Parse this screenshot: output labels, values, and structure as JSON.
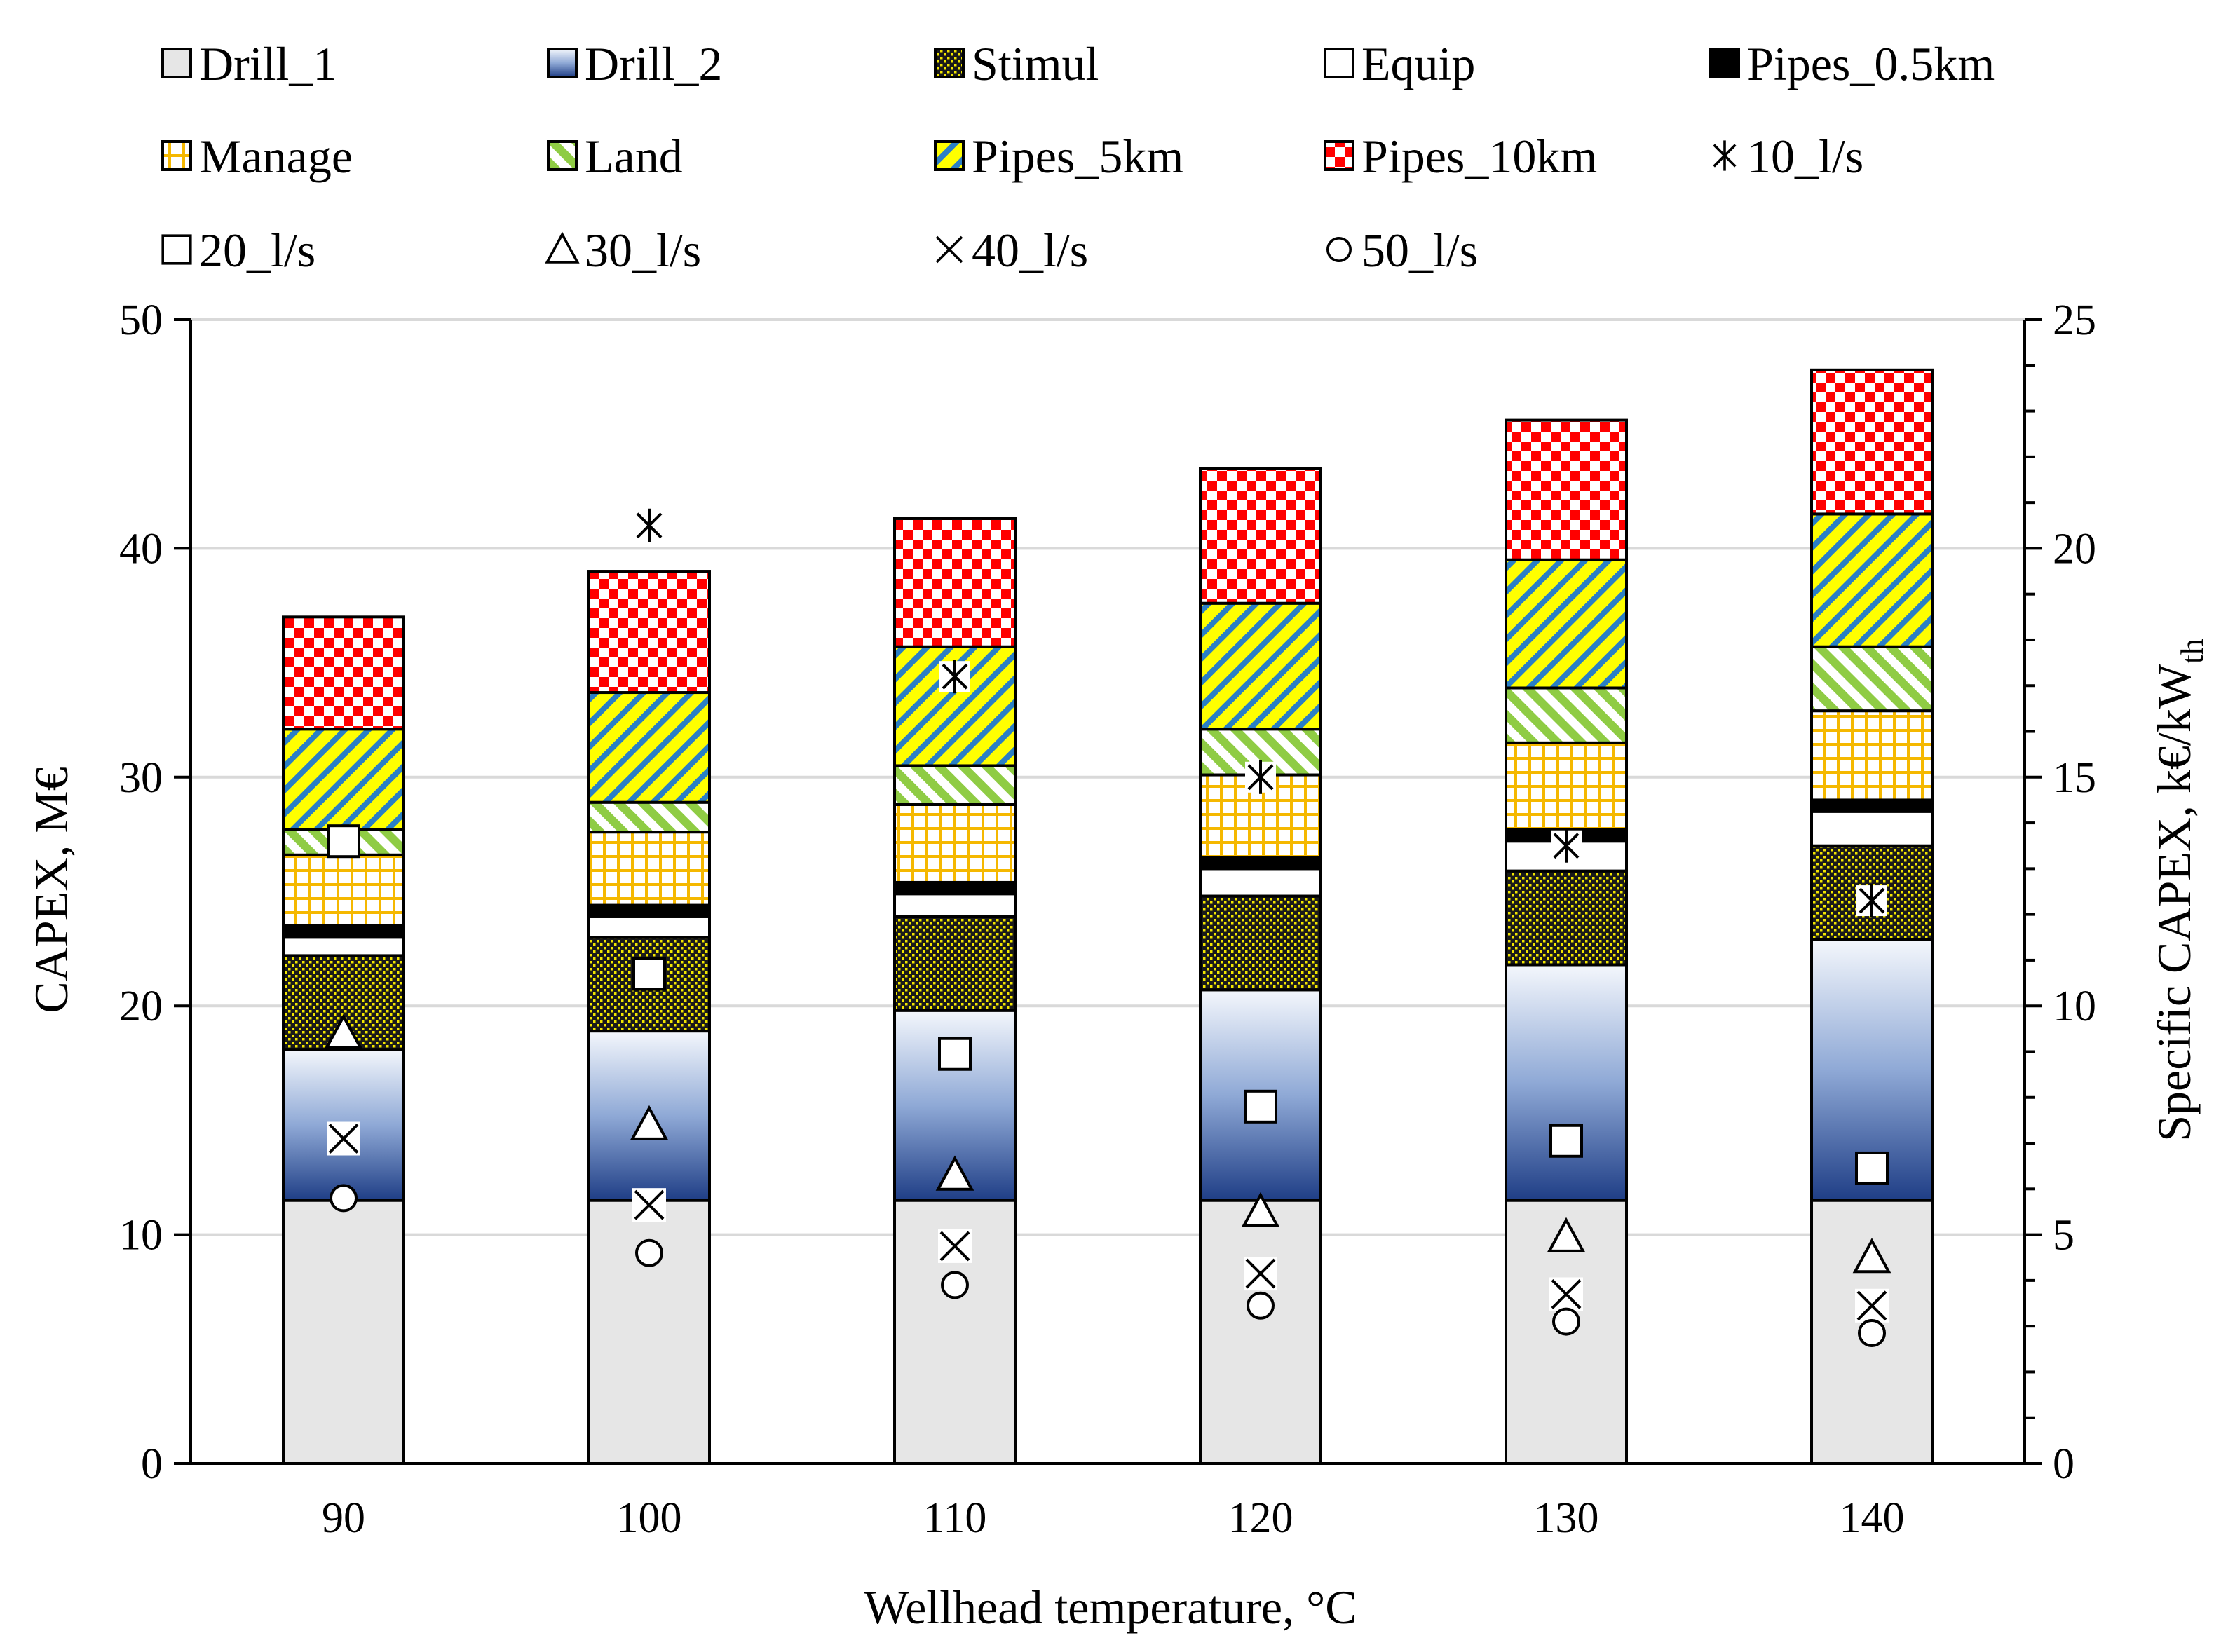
{
  "chart_data": {
    "type": "bar",
    "stacked": true,
    "x_title": "Wellhead temperature, °C",
    "y_left_title": "CAPEX, M€",
    "y_right_title_main": "Specific CAPEX, k€/kW",
    "y_right_title_sub": "th",
    "categories": [
      "90",
      "100",
      "110",
      "120",
      "130",
      "140"
    ],
    "y_left": {
      "min": 0,
      "max": 50,
      "ticks": [
        "0",
        "10",
        "20",
        "30",
        "40",
        "50"
      ]
    },
    "y_right": {
      "min": 0,
      "max": 25,
      "ticks": [
        "0",
        "5",
        "10",
        "15",
        "20",
        "25"
      ]
    },
    "grid": true,
    "legend_position": "top",
    "series": [
      {
        "name": "Drill_1",
        "fill": "drill1",
        "values": [
          11.5,
          11.5,
          11.5,
          11.5,
          11.5,
          11.5
        ]
      },
      {
        "name": "Drill_2",
        "fill": "drill2",
        "values": [
          6.6,
          7.4,
          8.3,
          9.2,
          10.3,
          11.4
        ]
      },
      {
        "name": "Stimul",
        "fill": "stimul",
        "values": [
          4.1,
          4.1,
          4.1,
          4.1,
          4.1,
          4.1
        ]
      },
      {
        "name": "Equip",
        "fill": "equip",
        "values": [
          0.8,
          0.9,
          1.0,
          1.2,
          1.3,
          1.5
        ]
      },
      {
        "name": "Pipes_0.5km",
        "fill": "pipes05",
        "values": [
          0.5,
          0.5,
          0.5,
          0.5,
          0.5,
          0.5
        ]
      },
      {
        "name": "Manage",
        "fill": "manage",
        "values": [
          3.1,
          3.2,
          3.4,
          3.6,
          3.8,
          3.9
        ]
      },
      {
        "name": "Land",
        "fill": "land",
        "values": [
          1.1,
          1.3,
          1.7,
          2.0,
          2.4,
          2.8
        ]
      },
      {
        "name": "Pipes_5km",
        "fill": "pipes5",
        "values": [
          4.4,
          4.8,
          5.2,
          5.5,
          5.6,
          5.8
        ]
      },
      {
        "name": "Pipes_10km",
        "fill": "pipes10",
        "values": [
          4.9,
          5.3,
          5.6,
          5.9,
          6.1,
          6.3
        ]
      }
    ],
    "markers": [
      {
        "name": "10_l/s",
        "symbol": "asterisk",
        "axis": "right",
        "values": [
          null,
          20.5,
          17.2,
          15.0,
          13.5,
          12.3
        ]
      },
      {
        "name": "20_l/s",
        "symbol": "square",
        "axis": "right",
        "values": [
          13.6,
          10.7,
          8.95,
          7.8,
          7.05,
          6.45
        ]
      },
      {
        "name": "30_l/s",
        "symbol": "triangle",
        "axis": "right",
        "values": [
          9.4,
          7.4,
          6.3,
          5.5,
          4.95,
          4.5
        ]
      },
      {
        "name": "40_l/s",
        "symbol": "cross",
        "axis": "right",
        "values": [
          7.1,
          5.65,
          4.75,
          4.15,
          3.7,
          3.45
        ]
      },
      {
        "name": "50_l/s",
        "symbol": "circle",
        "axis": "right",
        "values": [
          5.8,
          4.6,
          3.9,
          3.45,
          3.1,
          2.85
        ]
      }
    ],
    "legend_order": [
      "Drill_1",
      "Drill_2",
      "Stimul",
      "Equip",
      "Pipes_0.5km",
      "Manage",
      "Land",
      "Pipes_5km",
      "Pipes_10km",
      "10_l/s",
      "20_l/s",
      "30_l/s",
      "40_l/s",
      "50_l/s"
    ],
    "colors": {
      "drill1": "#e6e6e6",
      "drill2_dark": "#1f3e86",
      "drill2_light": "#f4f7fc",
      "stimul_bg": "#1a1a1a",
      "stimul_dot": "#f2e600",
      "manage_fg": "#f5b800",
      "land_fg": "#8fcc44",
      "pipes5_yellow": "#ffff00",
      "pipes5_blue": "#2a7fc5",
      "pipes10_red": "#ff0000",
      "grid": "#d9d9d9"
    }
  }
}
